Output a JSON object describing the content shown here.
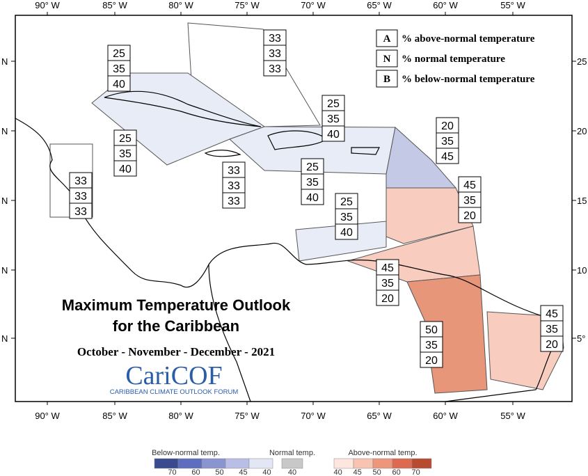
{
  "axes": {
    "top_longitudes": [
      "90° W",
      "85° W",
      "80° W",
      "75° W",
      "70° W",
      "65° W",
      "60° W",
      "55° W"
    ],
    "bottom_longitudes": [
      "90° W",
      "85° W",
      "80° W",
      "75° W",
      "70° W",
      "65° W",
      "60° W",
      "55° W"
    ],
    "left_latitudes": [
      "N",
      "N",
      "N",
      "N",
      "N"
    ],
    "right_latitudes": [
      "25",
      "20",
      "15",
      "10",
      "5°"
    ]
  },
  "legend_key": [
    {
      "letter": "A",
      "text": "% above-normal temperature"
    },
    {
      "letter": "N",
      "text": "% normal temperature"
    },
    {
      "letter": "B",
      "text": "% below-normal temperature"
    }
  ],
  "regions": [
    {
      "values": [
        33,
        33,
        33
      ]
    },
    {
      "values": [
        25,
        35,
        40
      ]
    },
    {
      "values": [
        25,
        35,
        40
      ]
    },
    {
      "values": [
        25,
        35,
        40
      ]
    },
    {
      "values": [
        20,
        35,
        45
      ]
    },
    {
      "values": [
        33,
        33,
        33
      ]
    },
    {
      "values": [
        25,
        35,
        40
      ]
    },
    {
      "values": [
        33,
        33,
        33
      ]
    },
    {
      "values": [
        45,
        35,
        20
      ]
    },
    {
      "values": [
        25,
        35,
        40
      ]
    },
    {
      "values": [
        45,
        35,
        20
      ]
    },
    {
      "values": [
        50,
        35,
        20
      ]
    },
    {
      "values": [
        45,
        35,
        20
      ]
    }
  ],
  "title": "Maximum Temperature Outlook",
  "subtitle": "for the Caribbean",
  "period": "October - November - December - 2021",
  "logo": {
    "name": "CariCOF",
    "tagline": "CARIBBEAN CLIMATE OUTLOOK FORUM"
  },
  "colorbar": {
    "below": {
      "label": "Below-normal temp.",
      "ticks": [
        70,
        60,
        50,
        45,
        40
      ]
    },
    "normal": {
      "label": "Normal temp.",
      "ticks": [
        40
      ]
    },
    "above": {
      "label": "Above-normal temp.",
      "ticks": [
        40,
        45,
        50,
        60,
        70
      ]
    }
  }
}
